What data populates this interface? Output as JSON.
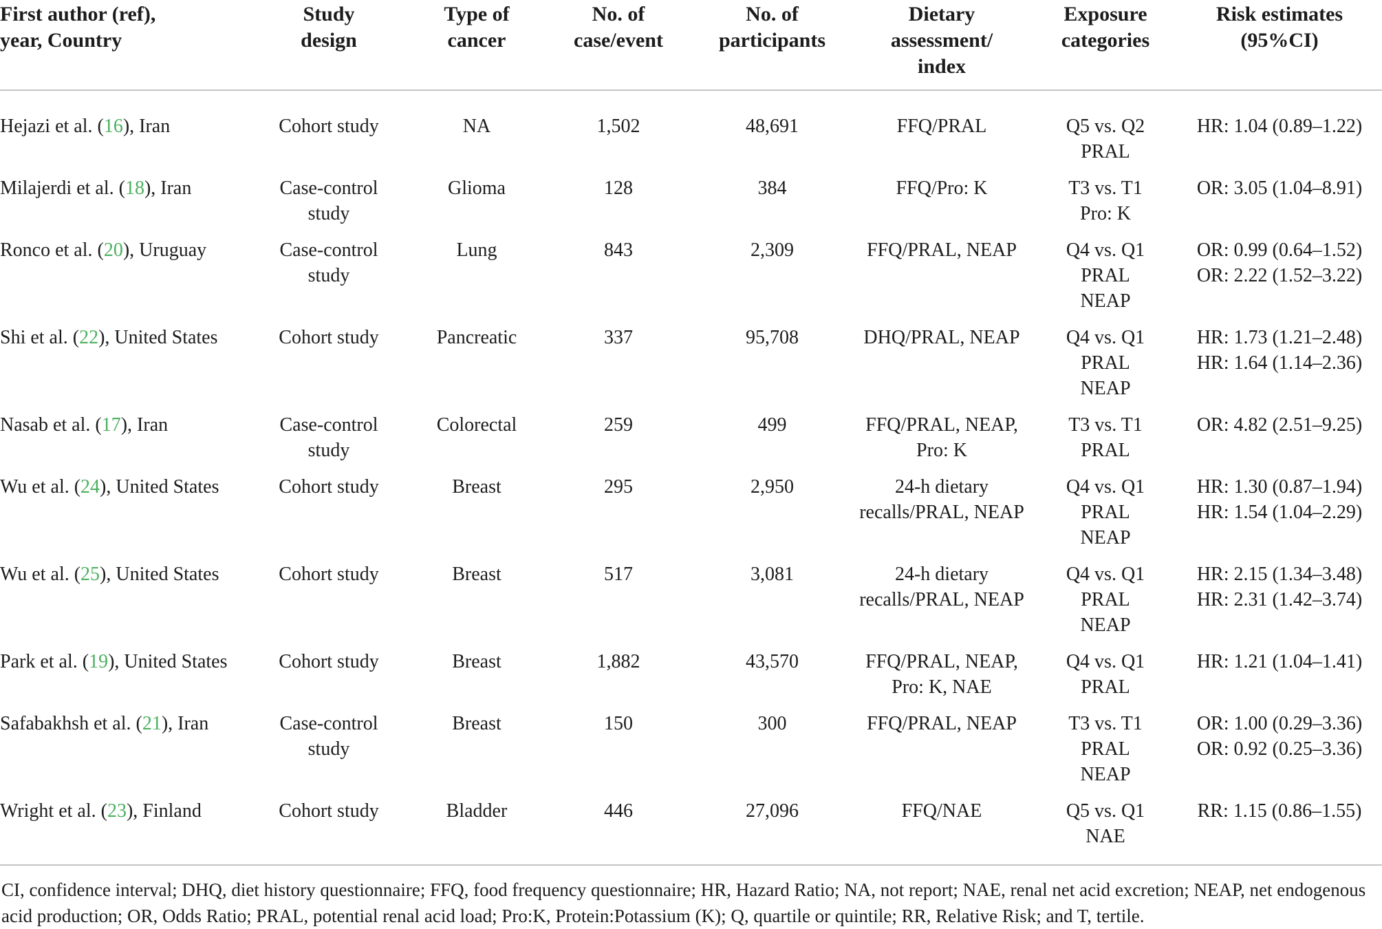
{
  "table": {
    "ref_color": "#4cb05f",
    "headers": [
      {
        "lines": [
          "First author (ref),",
          "year, Country"
        ],
        "align": "left"
      },
      {
        "lines": [
          "Study",
          "design"
        ]
      },
      {
        "lines": [
          "Type of",
          "cancer"
        ]
      },
      {
        "lines": [
          "No. of",
          "case/event"
        ]
      },
      {
        "lines": [
          "No. of",
          "participants"
        ]
      },
      {
        "lines": [
          "Dietary",
          "assessment/",
          "index"
        ]
      },
      {
        "lines": [
          "Exposure",
          "categories"
        ]
      },
      {
        "lines": [
          "Risk estimates",
          "(95%CI)"
        ]
      }
    ],
    "rows": [
      {
        "author": {
          "prefix": "Hejazi et al. (",
          "ref": "16",
          "suffix": "), Iran"
        },
        "study_design": [
          "Cohort study"
        ],
        "cancer_type": [
          "NA"
        ],
        "cases": [
          "1,502"
        ],
        "participants": [
          "48,691"
        ],
        "dietary": [
          "FFQ/PRAL"
        ],
        "exposure": [
          "Q5 vs. Q2",
          "PRAL"
        ],
        "risk": [
          "HR: 1.04 (0.89–1.22)"
        ]
      },
      {
        "author": {
          "prefix": "Milajerdi et al. (",
          "ref": "18",
          "suffix": "), Iran"
        },
        "study_design": [
          "Case-control",
          "study"
        ],
        "cancer_type": [
          "Glioma"
        ],
        "cases": [
          "128"
        ],
        "participants": [
          "384"
        ],
        "dietary": [
          "FFQ/Pro: K"
        ],
        "exposure": [
          "T3 vs. T1",
          "Pro: K"
        ],
        "risk": [
          "OR: 3.05 (1.04–8.91)"
        ]
      },
      {
        "author": {
          "prefix": "Ronco et al. (",
          "ref": "20",
          "suffix": "), Uruguay"
        },
        "study_design": [
          "Case-control",
          "study"
        ],
        "cancer_type": [
          "Lung"
        ],
        "cases": [
          "843"
        ],
        "participants": [
          "2,309"
        ],
        "dietary": [
          "FFQ/PRAL, NEAP"
        ],
        "exposure": [
          "Q4 vs. Q1",
          "PRAL",
          "NEAP"
        ],
        "risk": [
          "OR: 0.99 (0.64–1.52)",
          "OR: 2.22 (1.52–3.22)"
        ]
      },
      {
        "author": {
          "prefix": "Shi et al. (",
          "ref": "22",
          "suffix": "), United States"
        },
        "study_design": [
          "Cohort study"
        ],
        "cancer_type": [
          "Pancreatic"
        ],
        "cases": [
          "337"
        ],
        "participants": [
          "95,708"
        ],
        "dietary": [
          "DHQ/PRAL, NEAP"
        ],
        "exposure": [
          "Q4 vs. Q1",
          "PRAL",
          "NEAP"
        ],
        "risk": [
          "HR: 1.73 (1.21–2.48)",
          "HR: 1.64 (1.14–2.36)"
        ]
      },
      {
        "author": {
          "prefix": "Nasab et al. (",
          "ref": "17",
          "suffix": "), Iran"
        },
        "study_design": [
          "Case-control",
          "study"
        ],
        "cancer_type": [
          "Colorectal"
        ],
        "cases": [
          "259"
        ],
        "participants": [
          "499"
        ],
        "dietary": [
          "FFQ/PRAL, NEAP,",
          "Pro: K"
        ],
        "exposure": [
          "T3 vs. T1",
          "PRAL"
        ],
        "risk": [
          "OR: 4.82 (2.51–9.25)"
        ]
      },
      {
        "author": {
          "prefix": "Wu et al. (",
          "ref": "24",
          "suffix": "), United States"
        },
        "study_design": [
          "Cohort study"
        ],
        "cancer_type": [
          "Breast"
        ],
        "cases": [
          "295"
        ],
        "participants": [
          "2,950"
        ],
        "dietary": [
          "24-h dietary",
          "recalls/PRAL, NEAP"
        ],
        "exposure": [
          "Q4 vs. Q1",
          "PRAL",
          "NEAP"
        ],
        "risk": [
          "HR: 1.30 (0.87–1.94)",
          "HR: 1.54 (1.04–2.29)"
        ]
      },
      {
        "author": {
          "prefix": "Wu et al. (",
          "ref": "25",
          "suffix": "), United States"
        },
        "study_design": [
          "Cohort study"
        ],
        "cancer_type": [
          "Breast"
        ],
        "cases": [
          "517"
        ],
        "participants": [
          "3,081"
        ],
        "dietary": [
          "24-h dietary",
          "recalls/PRAL, NEAP"
        ],
        "exposure": [
          "Q4 vs. Q1",
          "PRAL",
          "NEAP"
        ],
        "risk": [
          "HR: 2.15 (1.34–3.48)",
          "HR: 2.31 (1.42–3.74)"
        ]
      },
      {
        "author": {
          "prefix": "Park et al. (",
          "ref": "19",
          "suffix": "), United States"
        },
        "study_design": [
          "Cohort study"
        ],
        "cancer_type": [
          "Breast"
        ],
        "cases": [
          "1,882"
        ],
        "participants": [
          "43,570"
        ],
        "dietary": [
          "FFQ/PRAL, NEAP,",
          "Pro: K, NAE"
        ],
        "exposure": [
          "Q4 vs. Q1",
          "PRAL"
        ],
        "risk": [
          "HR: 1.21 (1.04–1.41)"
        ]
      },
      {
        "author": {
          "prefix": "Safabakhsh et al. (",
          "ref": "21",
          "suffix": "), Iran"
        },
        "study_design": [
          "Case-control",
          "study"
        ],
        "cancer_type": [
          "Breast"
        ],
        "cases": [
          "150"
        ],
        "participants": [
          "300"
        ],
        "dietary": [
          "FFQ/PRAL, NEAP"
        ],
        "exposure": [
          "T3 vs. T1",
          "PRAL",
          "NEAP"
        ],
        "risk": [
          "OR: 1.00 (0.29–3.36)",
          "OR: 0.92 (0.25–3.36)"
        ]
      },
      {
        "author": {
          "prefix": "Wright et al. (",
          "ref": "23",
          "suffix": "), Finland"
        },
        "study_design": [
          "Cohort study"
        ],
        "cancer_type": [
          "Bladder"
        ],
        "cases": [
          "446"
        ],
        "participants": [
          "27,096"
        ],
        "dietary": [
          "FFQ/NAE"
        ],
        "exposure": [
          "Q5 vs. Q1",
          "NAE"
        ],
        "risk": [
          "RR: 1.15 (0.86–1.55)"
        ]
      }
    ]
  },
  "footnote": "CI, confidence interval; DHQ, diet history questionnaire; FFQ, food frequency questionnaire; HR, Hazard Ratio; NA, not report; NAE, renal net acid excretion; NEAP, net endogenous acid production; OR, Odds Ratio; PRAL, potential renal acid load; Pro:K, Protein:Potassium (K); Q, quartile or quintile; RR, Relative Risk; and T, tertile."
}
